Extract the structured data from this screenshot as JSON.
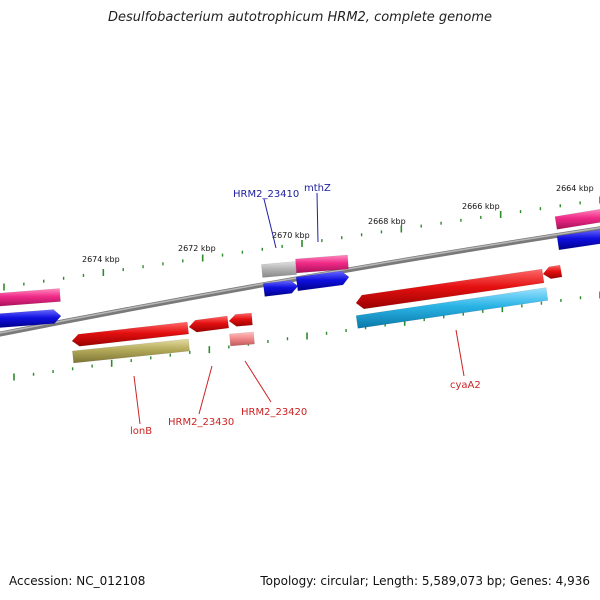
{
  "title": "Desulfobacterium autotrophicum HRM2, complete genome",
  "footer": {
    "accession": "Accession: NC_012108",
    "summary": "Topology: circular; Length: 5,589,073 bp; Genes: 4,936"
  },
  "colors": {
    "backbone": "#8c8c8c",
    "tick": "#2e8b2e",
    "forward_label": "#2020a0",
    "reverse_label": "#cc2222",
    "red": "#e41010",
    "pink": "#f23c8c",
    "blue": "#1010e0",
    "grey": "#b4b4b4",
    "cyan": "#2ab4e6",
    "olive": "#b4aa5a",
    "salmon": "#f28c8c"
  },
  "tick_labels": [
    "2674 kbp",
    "2672 kbp",
    "2670 kbp",
    "2668 kbp",
    "2666 kbp",
    "2664 kbp"
  ],
  "gene_labels": {
    "forward": [
      "HRM2_23410",
      "mthZ"
    ],
    "reverse": [
      "lonB",
      "HRM2_23430",
      "HRM2_23420",
      "cyaA2"
    ]
  }
}
